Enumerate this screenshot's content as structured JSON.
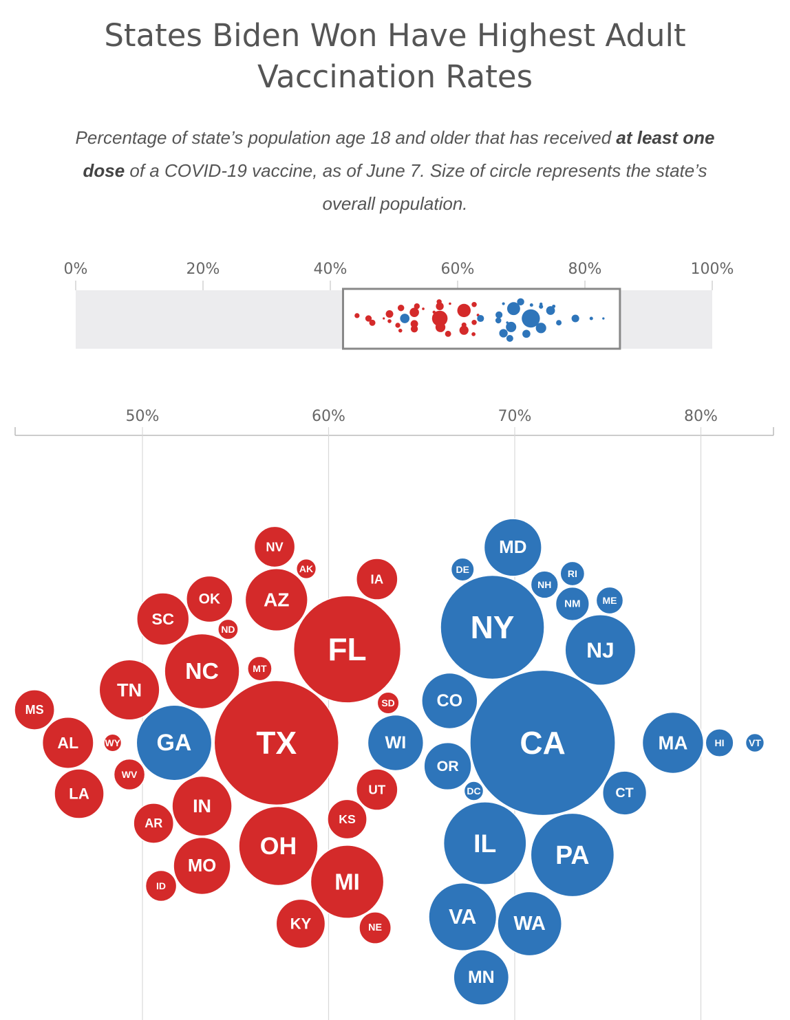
{
  "title_line1": "States Biden Won Have Highest Adult",
  "title_line2": "Vaccination Rates",
  "subtitle": {
    "part1": "Percentage of state’s population age 18 and older that has received ",
    "bold1": "at least one",
    "bold2": "dose",
    "part2": " of a COVID-19 vaccine, as of June 7. Size of circle represents the state’s",
    "line3": "overall population."
  },
  "colors": {
    "red": "#d42a2a",
    "blue": "#2e75ba",
    "overview_band": "#ececee",
    "grid": "#d8d8d8"
  },
  "chart_data": [
    {
      "type": "scatter",
      "title": "",
      "xlabel": "",
      "ylabel": "",
      "xlim": [
        0,
        100
      ],
      "x_ticks": [
        {
          "value": 0,
          "label": "0%"
        },
        {
          "value": 20,
          "label": "20%"
        },
        {
          "value": 40,
          "label": "40%"
        },
        {
          "value": 60,
          "label": "60%"
        },
        {
          "value": 80,
          "label": "80%"
        },
        {
          "value": 100,
          "label": "100%"
        }
      ],
      "highlight_range": [
        42,
        85.5
      ],
      "grid": false
    },
    {
      "type": "scatter",
      "title": "",
      "xlabel": "",
      "ylabel": "",
      "xlim": [
        43.2,
        84
      ],
      "x_ticks": [
        {
          "value": 50,
          "label": "50%"
        },
        {
          "value": 60,
          "label": "60%"
        },
        {
          "value": 70,
          "label": "70%"
        },
        {
          "value": 80,
          "label": "80%"
        }
      ],
      "grid": true,
      "size_encodes": "state population",
      "series": [
        {
          "color": "red",
          "points": [
            {
              "state": "MS",
              "x": 44.2,
              "population_m": 3.0
            },
            {
              "state": "AL",
              "x": 46.0,
              "population_m": 4.9
            },
            {
              "state": "LA",
              "x": 46.6,
              "population_m": 4.6
            },
            {
              "state": "WY",
              "x": 48.4,
              "population_m": 0.58
            },
            {
              "state": "WV",
              "x": 49.3,
              "population_m": 1.8
            },
            {
              "state": "TN",
              "x": 49.3,
              "population_m": 6.8
            },
            {
              "state": "ID",
              "x": 51.0,
              "population_m": 1.8
            },
            {
              "state": "SC",
              "x": 51.1,
              "population_m": 5.1
            },
            {
              "state": "AR",
              "x": 50.6,
              "population_m": 3.0
            },
            {
              "state": "IN",
              "x": 53.2,
              "population_m": 6.7
            },
            {
              "state": "NC",
              "x": 53.2,
              "population_m": 10.5
            },
            {
              "state": "OK",
              "x": 53.6,
              "population_m": 4.0
            },
            {
              "state": "MO",
              "x": 53.2,
              "population_m": 6.1
            },
            {
              "state": "ND",
              "x": 54.6,
              "population_m": 0.76
            },
            {
              "state": "MT",
              "x": 56.3,
              "population_m": 1.1
            },
            {
              "state": "NV",
              "x": 57.1,
              "population_m": 3.1
            },
            {
              "state": "AZ",
              "x": 57.2,
              "population_m": 7.3
            },
            {
              "state": "TX",
              "x": 57.2,
              "population_m": 29.0
            },
            {
              "state": "OH",
              "x": 57.3,
              "population_m": 11.7
            },
            {
              "state": "KY",
              "x": 58.5,
              "population_m": 4.5
            },
            {
              "state": "AK",
              "x": 58.8,
              "population_m": 0.73
            },
            {
              "state": "KS",
              "x": 61.0,
              "population_m": 2.9
            },
            {
              "state": "FL",
              "x": 61.0,
              "population_m": 21.5
            },
            {
              "state": "MI",
              "x": 61.0,
              "population_m": 10.0
            },
            {
              "state": "NE",
              "x": 62.5,
              "population_m": 1.9
            },
            {
              "state": "UT",
              "x": 62.6,
              "population_m": 3.2
            },
            {
              "state": "SD",
              "x": 63.2,
              "population_m": 0.88
            },
            {
              "state": "IA",
              "x": 62.6,
              "population_m": 3.2
            }
          ]
        },
        {
          "color": "blue",
          "points": [
            {
              "state": "GA",
              "x": 51.7,
              "population_m": 10.6
            },
            {
              "state": "WI",
              "x": 63.6,
              "population_m": 5.8
            },
            {
              "state": "CO",
              "x": 66.5,
              "population_m": 5.8
            },
            {
              "state": "DE",
              "x": 67.2,
              "population_m": 0.99
            },
            {
              "state": "DC",
              "x": 67.8,
              "population_m": 0.7
            },
            {
              "state": "OR",
              "x": 66.4,
              "population_m": 4.2
            },
            {
              "state": "VA",
              "x": 67.2,
              "population_m": 8.6
            },
            {
              "state": "MN",
              "x": 68.2,
              "population_m": 5.7
            },
            {
              "state": "NY",
              "x": 68.8,
              "population_m": 20.2
            },
            {
              "state": "MD",
              "x": 69.9,
              "population_m": 6.2
            },
            {
              "state": "IL",
              "x": 68.4,
              "population_m": 12.8
            },
            {
              "state": "WA",
              "x": 70.8,
              "population_m": 7.7
            },
            {
              "state": "NH",
              "x": 71.6,
              "population_m": 1.4
            },
            {
              "state": "CA",
              "x": 71.5,
              "population_m": 39.5
            },
            {
              "state": "RI",
              "x": 73.1,
              "population_m": 1.1
            },
            {
              "state": "NM",
              "x": 73.1,
              "population_m": 2.1
            },
            {
              "state": "PA",
              "x": 73.1,
              "population_m": 13.0
            },
            {
              "state": "NJ",
              "x": 74.6,
              "population_m": 9.3
            },
            {
              "state": "ME",
              "x": 75.1,
              "population_m": 1.36
            },
            {
              "state": "CT",
              "x": 75.9,
              "population_m": 3.6
            },
            {
              "state": "MA",
              "x": 78.5,
              "population_m": 7.0
            },
            {
              "state": "HI",
              "x": 81.0,
              "population_m": 1.46
            },
            {
              "state": "VT",
              "x": 82.9,
              "population_m": 0.64
            }
          ]
        }
      ]
    }
  ]
}
